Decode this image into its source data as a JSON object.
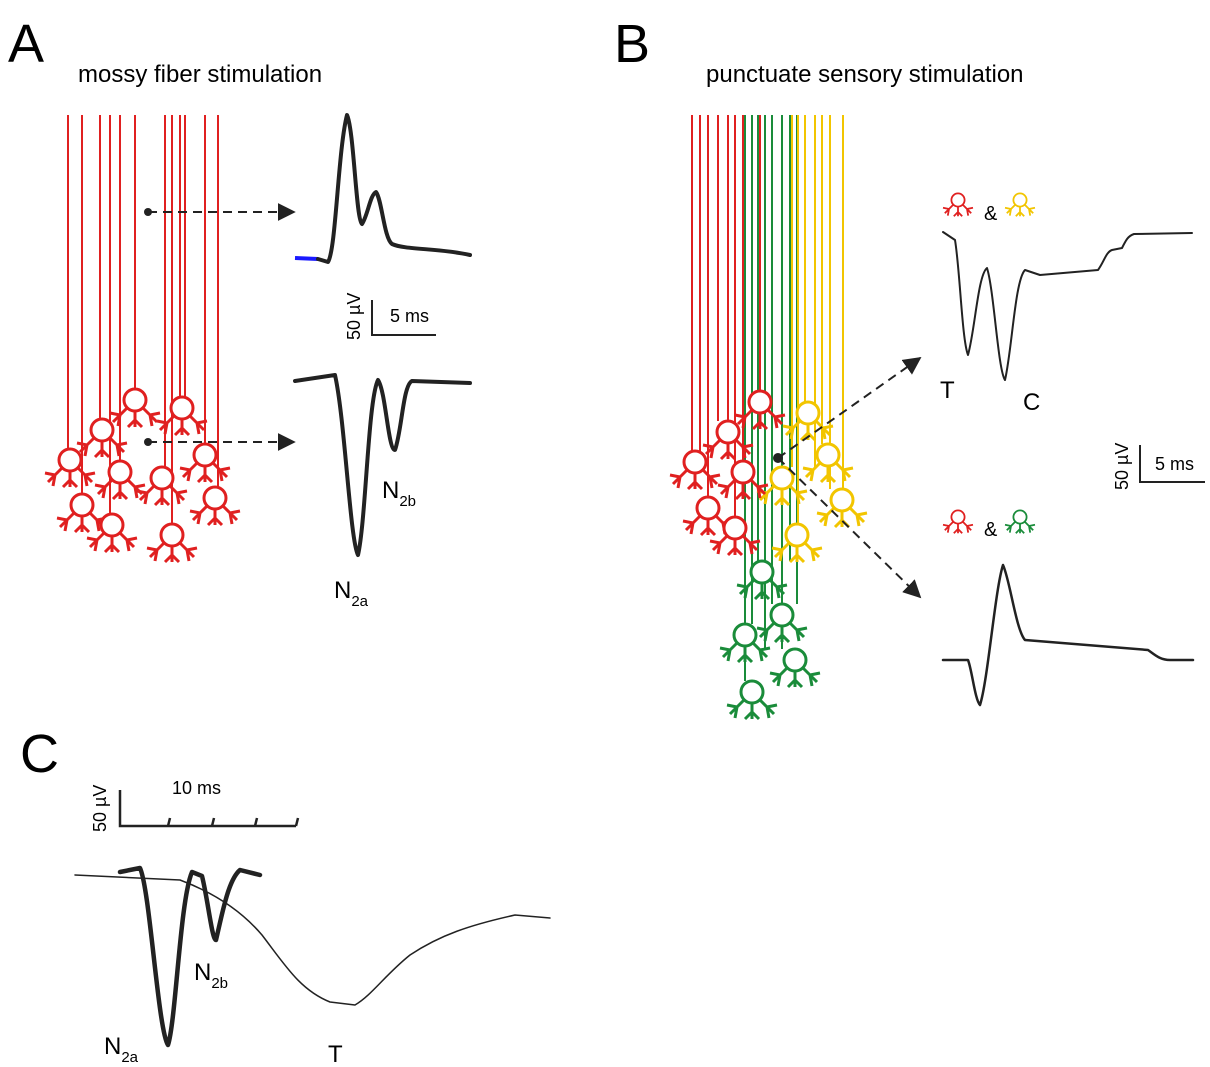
{
  "panels": [
    {
      "letter": "A",
      "title": "mossy fiber stimulation",
      "scale": {
        "amplitude": "50 µV",
        "time": "5 ms"
      },
      "peak_labels": [
        {
          "main": "N",
          "sub": "2b"
        },
        {
          "main": "N",
          "sub": "2a"
        }
      ]
    },
    {
      "letter": "B",
      "title": "punctuate sensory stimulation",
      "joiner": "&",
      "scale": {
        "amplitude": "50 µV",
        "time": "5 ms"
      },
      "peak_labels": [
        "T",
        "C"
      ]
    },
    {
      "letter": "C",
      "scale": {
        "amplitude": "50 µV",
        "time": "10 ms"
      },
      "peak_labels": [
        {
          "main": "N",
          "sub": "2a"
        },
        {
          "main": "N",
          "sub": "2b"
        },
        "T"
      ]
    }
  ]
}
